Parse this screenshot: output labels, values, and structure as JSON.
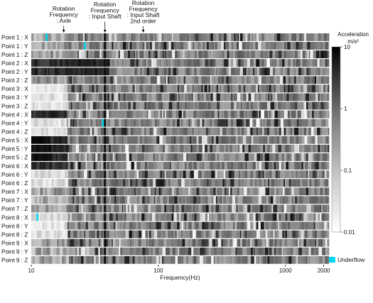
{
  "chart_data": {
    "type": "heatmap",
    "title": "",
    "xlabel": "Frequency(Hz)",
    "ylabel": "",
    "x_scale": "log",
    "xlim": [
      10,
      2200
    ],
    "x_ticks": [
      "10",
      "100",
      "1000",
      "2000"
    ],
    "rows": [
      "Point 1 : X",
      "Point 1 : Y",
      "Point 1 : Z",
      "Point 2 : X",
      "Point 2 : Y",
      "Point 2 : Z",
      "Point 3 : X",
      "Point 3 : Y",
      "Point 3 : Z",
      "Point 4 : X",
      "Point 4 : Y",
      "Point 4 : Z",
      "Point 5 : X",
      "Point 5 : Y",
      "Point 5 : Z",
      "Point 6 : X",
      "Point 6 : Y",
      "Point 6 : Z",
      "Point 7 : X",
      "Point 7 : Y",
      "Point 7 : Z",
      "Point 8 : X",
      "Point 8 : Y",
      "Point 8 : Z",
      "Point 9 : X",
      "Point 9 : Y",
      "Point 9 : Z"
    ],
    "colorbar": {
      "title": "Acceleration",
      "unit": "m/s²",
      "scale": "log",
      "range": [
        0.01,
        10
      ],
      "ticks": [
        "10",
        "1",
        "0.1",
        "0.01"
      ]
    },
    "annotations": [
      {
        "lines": [
          "Rotation",
          "Frequency",
          ": Axle"
        ],
        "frequency_hz": 18
      },
      {
        "lines": [
          "Rotation",
          "Frequency",
          ": Input Shaft"
        ],
        "frequency_hz": 38
      },
      {
        "lines": [
          "Rotation",
          "Frequency",
          ": Input Shaft",
          "2nd order"
        ],
        "frequency_hz": 76
      }
    ],
    "legend": {
      "label": "Underflow",
      "color": "#00d8ef"
    },
    "grid": false
  }
}
